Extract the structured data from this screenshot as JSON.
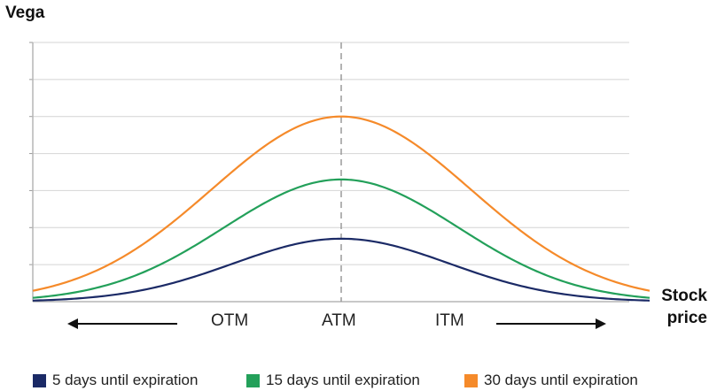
{
  "chart_data": {
    "type": "line",
    "ylabel": "Vega",
    "xlabel_line1": "Stock",
    "xlabel_line2": "price",
    "xlim": [
      -1,
      1
    ],
    "ylim": [
      0,
      7
    ],
    "grid": true,
    "legend_position": "bottom",
    "center_marker": "ATM",
    "zones": [
      "OTM",
      "ATM",
      "ITM"
    ],
    "series": [
      {
        "name": "5 days until expiration",
        "color": "#1b2a66",
        "peak": 1.7,
        "width": 0.35
      },
      {
        "name": "15 days until expiration",
        "color": "#23a05a",
        "peak": 3.3,
        "width": 0.38
      },
      {
        "name": "30 days until expiration",
        "color": "#f58a2a",
        "peak": 5.0,
        "width": 0.42
      }
    ]
  }
}
